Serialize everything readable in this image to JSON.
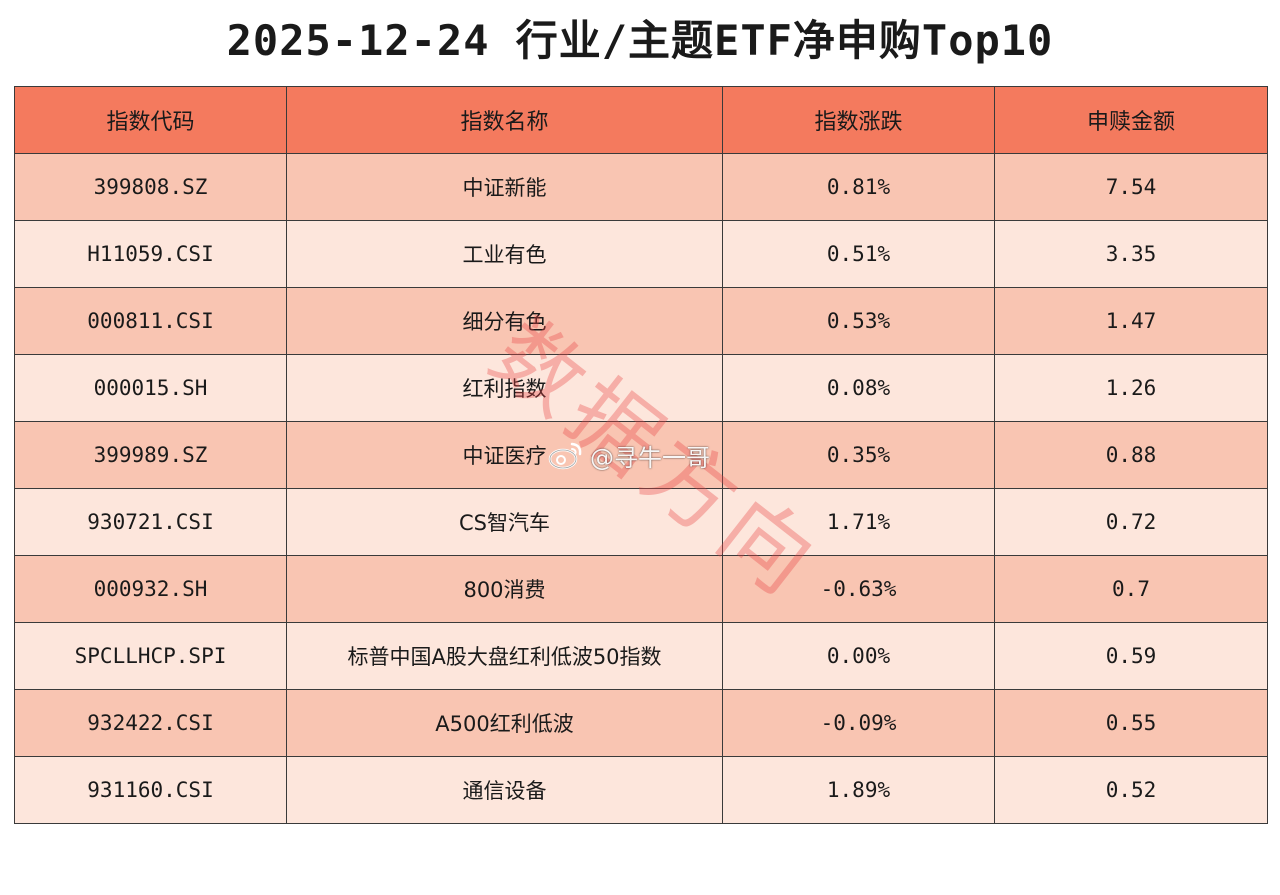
{
  "title": "2025-12-24 行业/主题ETF净申购Top10",
  "headers": [
    "指数代码",
    "指数名称",
    "指数涨跌",
    "申赎金额"
  ],
  "rows": [
    {
      "code": "399808.SZ",
      "name": "中证新能",
      "change": "0.81%",
      "amount": "7.54"
    },
    {
      "code": "H11059.CSI",
      "name": "工业有色",
      "change": "0.51%",
      "amount": "3.35"
    },
    {
      "code": "000811.CSI",
      "name": "细分有色",
      "change": "0.53%",
      "amount": "1.47"
    },
    {
      "code": "000015.SH",
      "name": "红利指数",
      "change": "0.08%",
      "amount": "1.26"
    },
    {
      "code": "399989.SZ",
      "name": "中证医疗",
      "change": "0.35%",
      "amount": "0.88"
    },
    {
      "code": "930721.CSI",
      "name": "CS智汽车",
      "change": "1.71%",
      "amount": "0.72"
    },
    {
      "code": "000932.SH",
      "name": "800消费",
      "change": "-0.63%",
      "amount": "0.7"
    },
    {
      "code": "SPCLLHCP.SPI",
      "name": "标普中国A股大盘红利低波50指数",
      "change": "0.00%",
      "amount": "0.59"
    },
    {
      "code": "932422.CSI",
      "name": "A500红利低波",
      "change": "-0.09%",
      "amount": "0.55"
    },
    {
      "code": "931160.CSI",
      "name": "通信设备",
      "change": "1.89%",
      "amount": "0.52"
    }
  ],
  "watermark": {
    "text": "数据方向",
    "handle": "@寻牛一哥",
    "icon": "weibo-icon"
  },
  "colors": {
    "header": "#f47a5e",
    "row_odd": "#f9c5b2",
    "row_even": "#fde6dc",
    "watermark": "#e84646"
  }
}
